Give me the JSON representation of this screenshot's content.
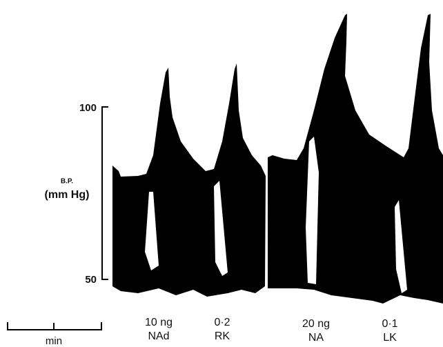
{
  "axis": {
    "label_top": "B.P.",
    "label": "(mm Hg)",
    "ticks": [
      100,
      50
    ]
  },
  "annotations": [
    {
      "dose": "10 ng",
      "drug": "NAd"
    },
    {
      "dose": "0·2",
      "drug": "RK"
    },
    {
      "dose": "20 ng",
      "drug": "NA"
    },
    {
      "dose": "0·1",
      "drug": "LK"
    }
  ],
  "scale_bar": {
    "label": "min"
  }
}
